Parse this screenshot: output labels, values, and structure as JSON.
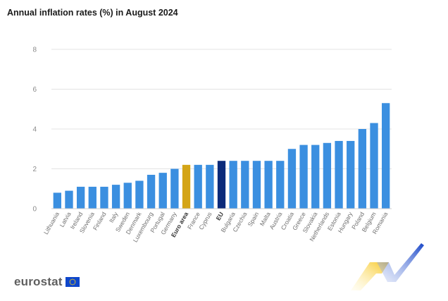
{
  "title": "Annual inflation rates (%) in August 2024",
  "logo": {
    "text": "eurostat",
    "icon": "eu-flag-icon"
  },
  "colors": {
    "bar": "#3b8fe0",
    "euro_area": "#d4a517",
    "eu": "#0b2a7a",
    "grid": "#e3e3e3"
  },
  "chart_data": {
    "type": "bar",
    "title": "Annual inflation rates (%) in August 2024",
    "xlabel": "",
    "ylabel": "",
    "ylim": [
      0,
      8
    ],
    "yticks": [
      0,
      2,
      4,
      6,
      8
    ],
    "grid": true,
    "categories": [
      "Lithuania",
      "Latvia",
      "Ireland",
      "Slovenia",
      "Finland",
      "Italy",
      "Sweden",
      "Denmark",
      "Luxembourg",
      "Portugal",
      "Germany",
      "Euro area",
      "France",
      "Cyprus",
      "EU",
      "Bulgaria",
      "Czechia",
      "Spain",
      "Malta",
      "Austria",
      "Croatia",
      "Greece",
      "Slovakia",
      "Netherlands",
      "Estonia",
      "Hungary",
      "Poland",
      "Belgium",
      "Romania"
    ],
    "values": [
      0.8,
      0.9,
      1.1,
      1.1,
      1.1,
      1.2,
      1.3,
      1.4,
      1.7,
      1.8,
      2.0,
      2.2,
      2.2,
      2.2,
      2.4,
      2.4,
      2.4,
      2.4,
      2.4,
      2.4,
      3.0,
      3.2,
      3.2,
      3.3,
      3.4,
      3.4,
      4.0,
      4.3,
      5.3
    ],
    "highlight": {
      "Euro area": "euro_area",
      "EU": "eu"
    }
  }
}
